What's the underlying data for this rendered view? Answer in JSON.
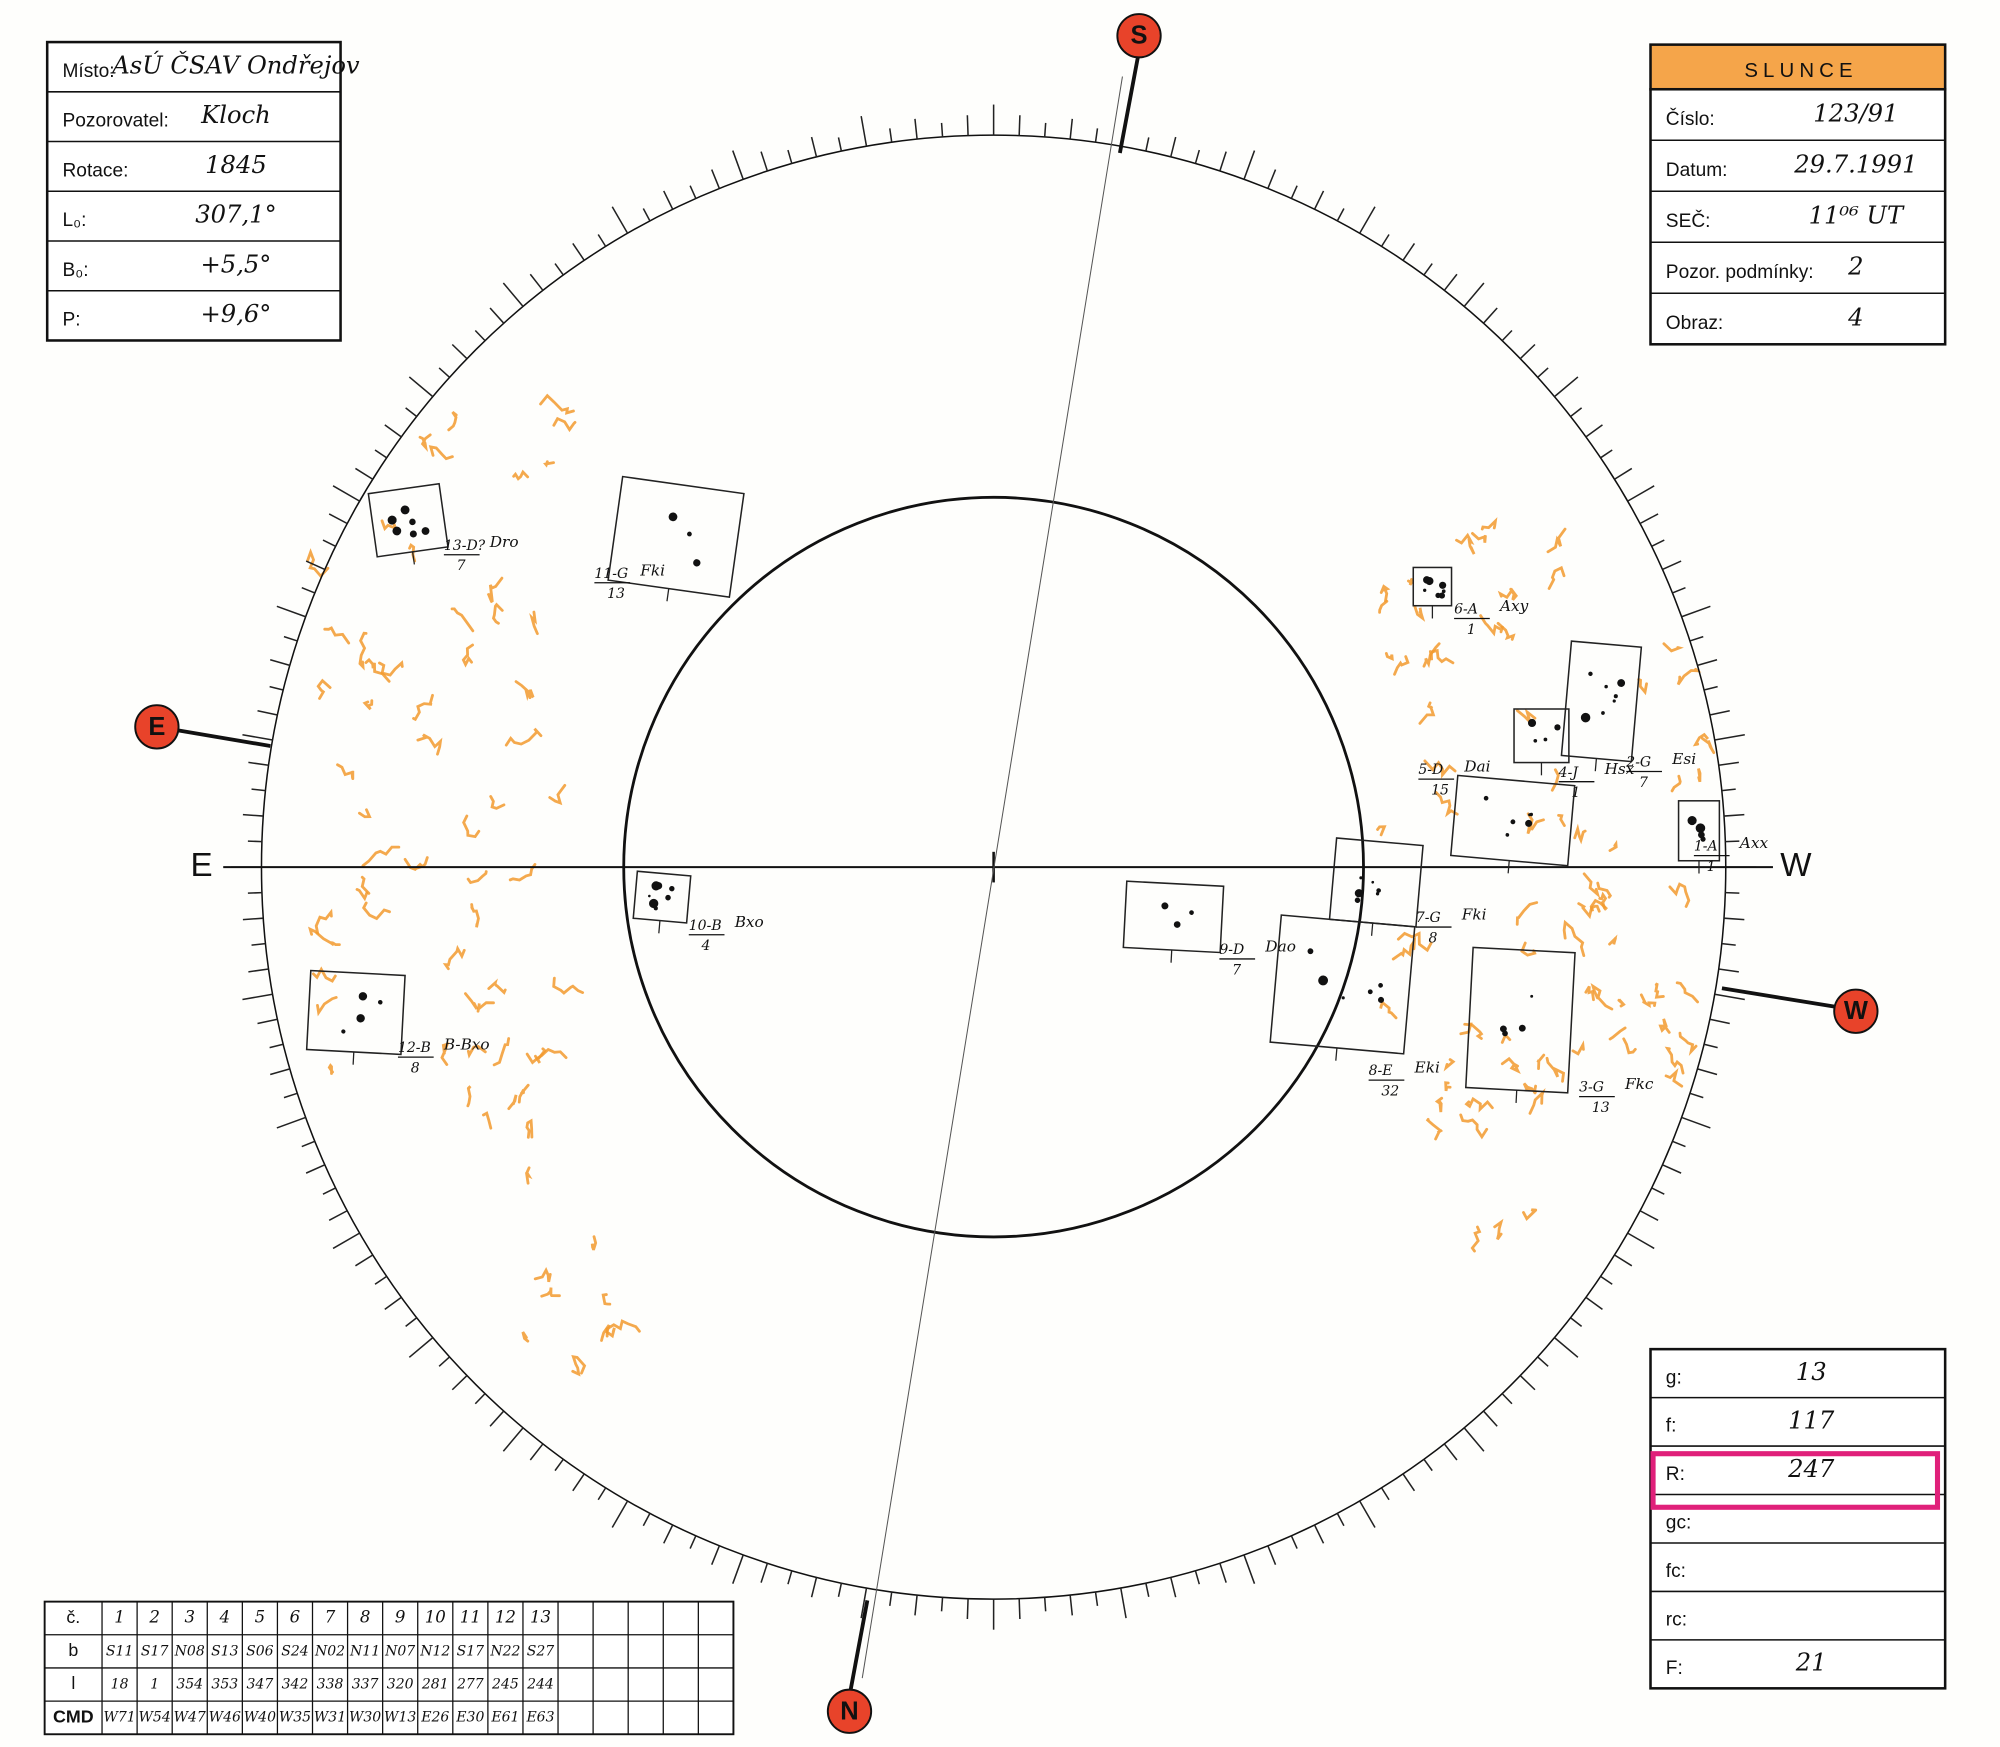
{
  "header_left": {
    "rows": [
      {
        "label": "Místo:",
        "value": "AsÚ ČSAV Ondřejov"
      },
      {
        "label": "Pozorovatel:",
        "value": "Kloch"
      },
      {
        "label": "Rotace:",
        "value": 1845
      },
      {
        "label": "L₀:",
        "value": "307,1°"
      },
      {
        "label": "B₀:",
        "value": "+5,5°"
      },
      {
        "label": "P:",
        "value": "+9,6°"
      }
    ]
  },
  "header_right": {
    "title": "SLUNCE",
    "rows": [
      {
        "label": "Číslo:",
        "value": "123/91"
      },
      {
        "label": "Datum:",
        "value": "29.7.1991"
      },
      {
        "label": "SEČ:",
        "value": "11⁰⁶ UT"
      },
      {
        "label": "Pozor. podmínky:",
        "value": 2
      },
      {
        "label": "Obraz:",
        "value": 4
      }
    ]
  },
  "compass": {
    "south": "S",
    "north": "N",
    "east": "E",
    "west": "W",
    "axis_east": "E",
    "axis_west": "W"
  },
  "groups": [
    {
      "label": "13-D?",
      "type": "Dro",
      "count": 7
    },
    {
      "label": "11-G",
      "type": "Fki",
      "count": 13
    },
    {
      "label": "6-A",
      "type": "Axy",
      "count": 1
    },
    {
      "label": "2-G",
      "type": "Esi",
      "count": 7
    },
    {
      "label": "4-J",
      "type": "Hsx",
      "count": 1
    },
    {
      "label": "5-D",
      "type": "Dai",
      "count": 15
    },
    {
      "label": "1-A",
      "type": "Axx",
      "count": 1
    },
    {
      "label": "7-G",
      "type": "Fki",
      "count": 8
    },
    {
      "label": "9-D",
      "type": "Dao",
      "count": 7
    },
    {
      "label": "8-E",
      "type": "Eki",
      "count": 32
    },
    {
      "label": "3-G",
      "type": "Fkc",
      "count": 13
    },
    {
      "label": "10-B",
      "type": "Bxo",
      "count": 4
    },
    {
      "label": "12-B",
      "type": "B-Bxo",
      "count": 8
    }
  ],
  "summary": {
    "rows": [
      {
        "label": "g:",
        "value": 13
      },
      {
        "label": "f:",
        "value": 117
      },
      {
        "label": "R:",
        "value": 247
      },
      {
        "label": "gc:"
      },
      {
        "label": "fc:"
      },
      {
        "label": "rc:"
      },
      {
        "label": "F:",
        "value": 21
      }
    ]
  },
  "table": {
    "row_labels": [
      "č.",
      "b",
      "l",
      "CMD"
    ],
    "numbers": [
      1,
      2,
      3,
      4,
      5,
      6,
      7,
      8,
      9,
      10,
      11,
      12,
      13
    ],
    "b": [
      "S11",
      "S17",
      "N08",
      "S13",
      "S06",
      "S24",
      "N02",
      "N11",
      "N07",
      "N12",
      "S17",
      "N22",
      "S27"
    ],
    "l": [
      18,
      1,
      354,
      353,
      347,
      342,
      338,
      337,
      320,
      281,
      277,
      245,
      244
    ],
    "cmd": [
      "W71",
      "W54",
      "W47",
      "W46",
      "W40",
      "W35",
      "W31",
      "W30",
      "W13",
      "E26",
      "E30",
      "E61",
      "E63"
    ]
  }
}
